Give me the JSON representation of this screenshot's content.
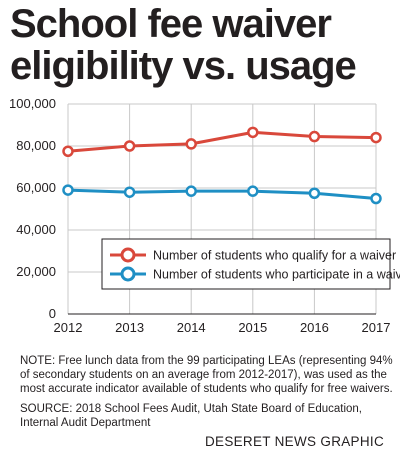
{
  "chart_data": {
    "type": "line",
    "title_lines": [
      "School fee waiver",
      "eligibility vs. usage"
    ],
    "categories": [
      "2012",
      "2013",
      "2014",
      "2015",
      "2016",
      "2017"
    ],
    "y_ticks": [
      "0",
      "20,000",
      "40,000",
      "60,000",
      "80,000",
      "100,000"
    ],
    "ylim": [
      0,
      100000
    ],
    "grid": true,
    "legend_position": "lower-right",
    "series": [
      {
        "name": "Number of students who qualify for a waiver",
        "color": "#d9483b",
        "marker": "open-circle",
        "values": [
          77500,
          80000,
          81000,
          86500,
          84500,
          84000
        ]
      },
      {
        "name": "Number of students who participate in a waiver",
        "color": "#1f8fc4",
        "marker": "open-circle",
        "values": [
          59000,
          58000,
          58500,
          58500,
          57500,
          55000
        ]
      }
    ]
  },
  "note": "NOTE: Free lunch data from the 99 participating LEAs (representing 94% of secondary students on an average from 2012-2017), was used as the most accurate indicator available of students who qualify for free waivers.",
  "source": "SOURCE: 2018 School Fees Audit, Utah State Board of Education, Internal Audit Department",
  "credit": "DESERET NEWS GRAPHIC"
}
